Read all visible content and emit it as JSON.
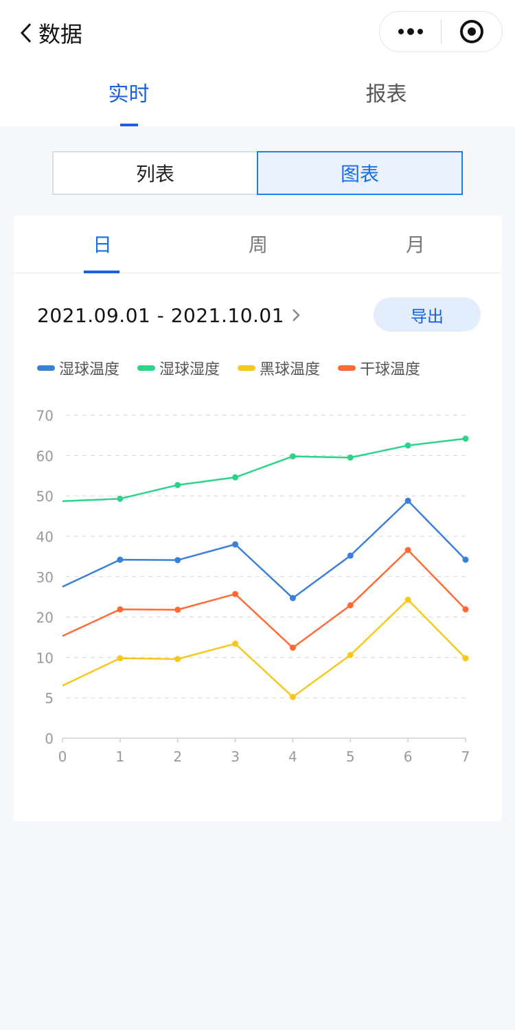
{
  "header": {
    "title": "数据"
  },
  "main_tabs": [
    {
      "label": "实时",
      "active": true
    },
    {
      "label": "报表",
      "active": false
    }
  ],
  "view_toggle": {
    "list_label": "列表",
    "chart_label": "图表",
    "selected": "图表"
  },
  "period_tabs": [
    {
      "label": "日",
      "active": true
    },
    {
      "label": "周",
      "active": false
    },
    {
      "label": "月",
      "active": false
    }
  ],
  "date_range": "2021.09.01 - 2021.10.01",
  "export_label": "导出",
  "colors": {
    "accent": "#1a5fdc",
    "series_blue": "#3a7fd8",
    "series_green": "#2ed38a",
    "series_yellow": "#f7c81c",
    "series_orange": "#ff6b35"
  },
  "chart_data": {
    "type": "line",
    "x": [
      0,
      1,
      2,
      3,
      4,
      5,
      6,
      7
    ],
    "y_ticks": [
      0,
      5,
      10,
      20,
      30,
      40,
      50,
      60,
      70
    ],
    "grid": "dashed-horizontal",
    "legend": "top-left",
    "series": [
      {
        "name": "湿球温度",
        "color": "#3a7fd8",
        "values": [
          27.5,
          34.2,
          34.1,
          38,
          24.7,
          35.2,
          48.8,
          34.2
        ]
      },
      {
        "name": "湿球湿度",
        "color": "#2ed38a",
        "values": [
          48.7,
          49.3,
          52.7,
          54.6,
          59.8,
          59.5,
          62.5,
          64.2
        ]
      },
      {
        "name": "黑球温度",
        "color": "#f7c81c",
        "values": [
          6.5,
          9.9,
          9.8,
          13.4,
          5.1,
          10.6,
          24.3,
          9.9
        ]
      },
      {
        "name": "干球温度",
        "color": "#ff6b35",
        "values": [
          15.3,
          21.9,
          21.8,
          25.7,
          12.4,
          22.9,
          36.6,
          21.9
        ]
      }
    ]
  }
}
